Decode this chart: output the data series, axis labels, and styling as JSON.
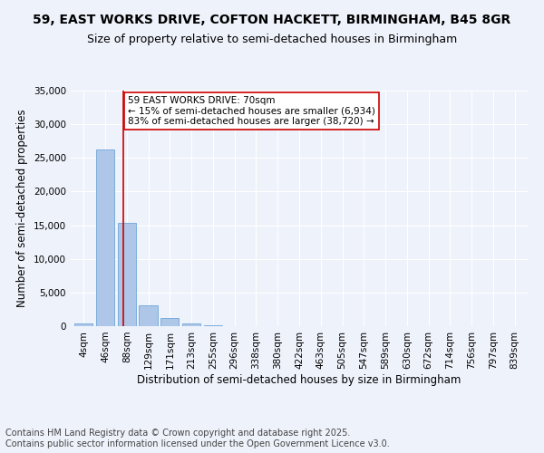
{
  "title_line1": "59, EAST WORKS DRIVE, COFTON HACKETT, BIRMINGHAM, B45 8GR",
  "title_line2": "Size of property relative to semi-detached houses in Birmingham",
  "xlabel": "Distribution of semi-detached houses by size in Birmingham",
  "ylabel": "Number of semi-detached properties",
  "categories": [
    "4sqm",
    "46sqm",
    "88sqm",
    "129sqm",
    "171sqm",
    "213sqm",
    "255sqm",
    "296sqm",
    "338sqm",
    "380sqm",
    "422sqm",
    "463sqm",
    "505sqm",
    "547sqm",
    "589sqm",
    "630sqm",
    "672sqm",
    "714sqm",
    "756sqm",
    "797sqm",
    "839sqm"
  ],
  "values": [
    400,
    26200,
    15300,
    3100,
    1200,
    450,
    150,
    0,
    0,
    0,
    0,
    0,
    0,
    0,
    0,
    0,
    0,
    0,
    0,
    0,
    0
  ],
  "bar_color": "#aec6e8",
  "bar_edge_color": "#5b9bd5",
  "property_line_x": 1.85,
  "annotation_text_line1": "59 EAST WORKS DRIVE: 70sqm",
  "annotation_text_line2": "← 15% of semi-detached houses are smaller (6,934)",
  "annotation_text_line3": "83% of semi-detached houses are larger (38,720) →",
  "annotation_box_color": "#ffffff",
  "annotation_box_edge": "#cc0000",
  "vline_color": "#cc0000",
  "ylim": [
    0,
    35000
  ],
  "yticks": [
    0,
    5000,
    10000,
    15000,
    20000,
    25000,
    30000,
    35000
  ],
  "background_color": "#eef2fb",
  "grid_color": "#ffffff",
  "footer_line1": "Contains HM Land Registry data © Crown copyright and database right 2025.",
  "footer_line2": "Contains public sector information licensed under the Open Government Licence v3.0.",
  "title_fontsize": 10,
  "subtitle_fontsize": 9,
  "tick_fontsize": 7.5,
  "axis_label_fontsize": 8.5,
  "footer_fontsize": 7,
  "annotation_fontsize": 7.5
}
